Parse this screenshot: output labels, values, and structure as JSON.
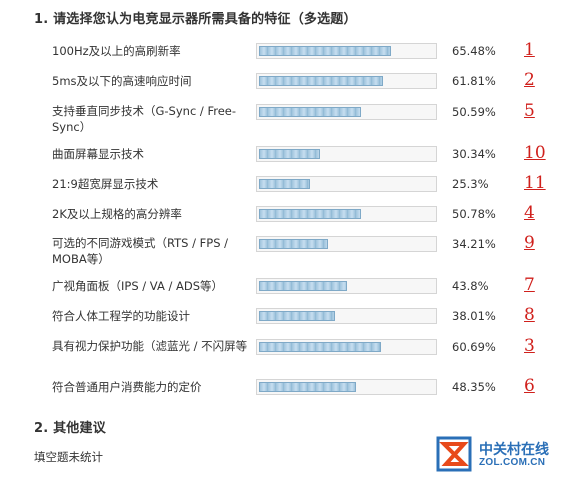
{
  "question1": {
    "title": "1. 请选择您认为电竞显示器所需具备的特征（多选题）"
  },
  "options": [
    {
      "label": "100Hz及以上的高刷新率",
      "percent_text": "65.48%",
      "percent": 65.48,
      "rank": "1"
    },
    {
      "label": "5ms及以下的高速响应时间",
      "percent_text": "61.81%",
      "percent": 61.81,
      "rank": "2"
    },
    {
      "label": "支持垂直同步技术（G-Sync / Free-Sync）",
      "percent_text": "50.59%",
      "percent": 50.59,
      "rank": "5"
    },
    {
      "label": "曲面屏幕显示技术",
      "percent_text": "30.34%",
      "percent": 30.34,
      "rank": "10"
    },
    {
      "label": "21:9超宽屏显示技术",
      "percent_text": "25.3%",
      "percent": 25.3,
      "rank": "11"
    },
    {
      "label": "2K及以上规格的高分辨率",
      "percent_text": "50.78%",
      "percent": 50.78,
      "rank": "4"
    },
    {
      "label": "可选的不同游戏模式（RTS / FPS / MOBA等）",
      "percent_text": "34.21%",
      "percent": 34.21,
      "rank": "9"
    },
    {
      "label": "广视角面板（IPS / VA / ADS等）",
      "percent_text": "43.8%",
      "percent": 43.8,
      "rank": "7"
    },
    {
      "label": "符合人体工程学的功能设计",
      "percent_text": "38.01%",
      "percent": 38.01,
      "rank": "8"
    },
    {
      "label": "具有视力保护功能（滤蓝光 / 不闪屏等",
      "percent_text": "60.69%",
      "percent": 60.69,
      "rank": "3"
    },
    {
      "label": "符合普通用户消费能力的定价",
      "percent_text": "48.35%",
      "percent": 48.35,
      "rank": "6"
    }
  ],
  "question2": {
    "title": "2. 其他建议",
    "note": "填空题未统计"
  },
  "watermark": {
    "brand": "中关村在线",
    "url": "ZOL.COM.CN"
  },
  "colors": {
    "rank": "#d0201c",
    "bar": "#9fc4dd",
    "brand": "#2a6fb7"
  }
}
